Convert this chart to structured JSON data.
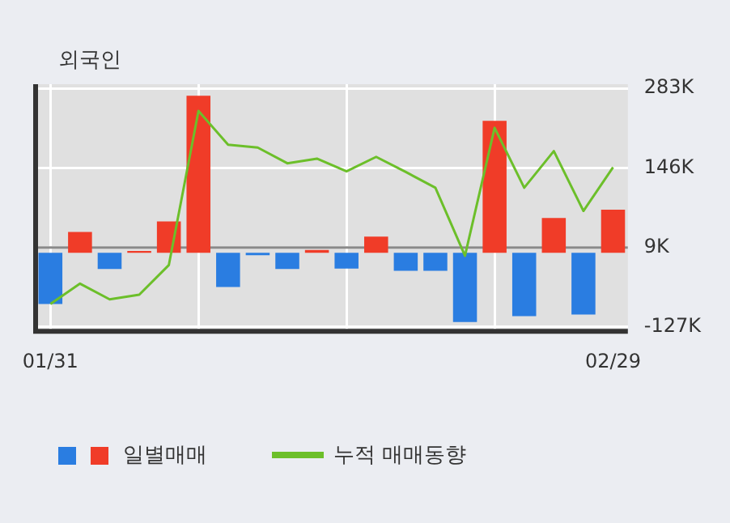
{
  "chart_data": {
    "type": "bar",
    "title": "외국인",
    "categories": [
      "01/31",
      null,
      null,
      null,
      null,
      null,
      null,
      null,
      null,
      null,
      null,
      null,
      null,
      null,
      null,
      null,
      null,
      null,
      null,
      "02/29"
    ],
    "series": [
      {
        "name": "일별매매",
        "colors": [
          "#2a7de1",
          "#f03c28",
          "#2a7de1",
          "#f03c28",
          "#f03c28",
          "#f03c28",
          "#2a7de1",
          "#2a7de1",
          "#2a7de1",
          "#f03c28",
          "#2a7de1",
          "#f03c28",
          "#2a7de1",
          "#2a7de1",
          "#2a7de1",
          "#f03c28",
          "#2a7de1",
          "#f03c28",
          "#2a7de1",
          "#f03c28"
        ],
        "values": [
          -88,
          36,
          -28,
          3,
          54,
          270,
          -59,
          -4,
          -28,
          5,
          -27,
          28,
          -31,
          -31,
          -119,
          227,
          -109,
          60,
          -106,
          74
        ]
      },
      {
        "name": "누적 매매동향",
        "type": "line",
        "color": "#6cbf2a",
        "values": [
          -88,
          -53,
          -80,
          -72,
          -21,
          244,
          186,
          181,
          154,
          162,
          140,
          165,
          139,
          112,
          -5,
          215,
          112,
          175,
          72,
          147
        ]
      }
    ],
    "ylim": [
      -135,
      290
    ],
    "yticks": [
      {
        "value": 283,
        "label": "283K"
      },
      {
        "value": 146,
        "label": "146K"
      },
      {
        "value": 9,
        "label": "9K"
      },
      {
        "value": -127,
        "label": "-127K"
      }
    ],
    "ref_lines": [
      {
        "axis": "y",
        "value": 9,
        "color": "#8a8a8a"
      }
    ],
    "grid": true,
    "legend": "bottom",
    "marker": "none"
  }
}
